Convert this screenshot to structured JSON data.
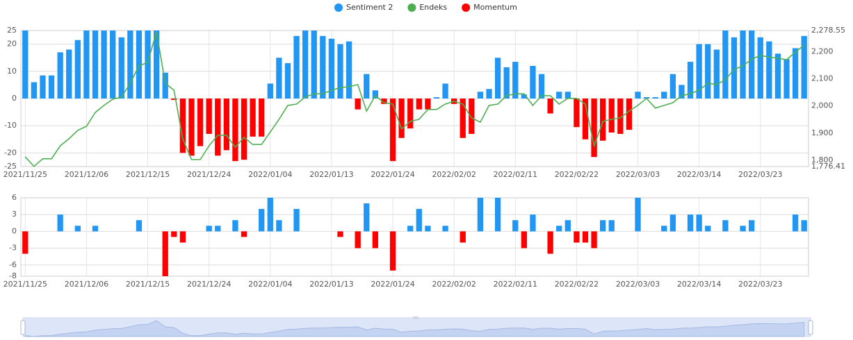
{
  "chart_data": [
    {
      "type": "bar_line",
      "categories": [
        "2021/11/25",
        null,
        null,
        null,
        null,
        null,
        null,
        "2021/12/06",
        null,
        null,
        null,
        null,
        null,
        null,
        "2021/12/15",
        null,
        null,
        null,
        null,
        null,
        null,
        "2021/12/24",
        null,
        null,
        null,
        null,
        null,
        null,
        "2022/01/04",
        null,
        null,
        null,
        null,
        null,
        null,
        "2022/01/13",
        null,
        null,
        null,
        null,
        null,
        null,
        "2022/01/24",
        null,
        null,
        null,
        null,
        null,
        null,
        "2022/02/02",
        null,
        null,
        null,
        null,
        null,
        null,
        "2022/02/11",
        null,
        null,
        null,
        null,
        null,
        null,
        "2022/02/22",
        null,
        null,
        null,
        null,
        null,
        null,
        "2022/03/03",
        null,
        null,
        null,
        null,
        null,
        null,
        "2022/03/14",
        null,
        null,
        null,
        null,
        null,
        null,
        "2022/03/23",
        null,
        null,
        null,
        null,
        null
      ],
      "series": [
        {
          "name": "Sentiment 2",
          "color": "#2196f3",
          "kind": "bar",
          "values": [
            25,
            6,
            8.5,
            8.5,
            17,
            18,
            21.5,
            25,
            25,
            25,
            25,
            22.5,
            25,
            25,
            25,
            25,
            9.5,
            null,
            null,
            null,
            null,
            null,
            null,
            null,
            null,
            null,
            null,
            null,
            5.5,
            15,
            13,
            23,
            25,
            25,
            23,
            22,
            20,
            21,
            null,
            9,
            3,
            null,
            null,
            null,
            null,
            null,
            null,
            0.5,
            5.5,
            null,
            null,
            null,
            2.5,
            3.5,
            15,
            11.5,
            13.5,
            1.5,
            12,
            9,
            null,
            2.5,
            2.5,
            null,
            null,
            null,
            null,
            null,
            null,
            null,
            2.5,
            0.5,
            0.5,
            2.5,
            9,
            5,
            13.5,
            20,
            20,
            18,
            25,
            22.5,
            25,
            25,
            22.5,
            21,
            16.5,
            14.5,
            18.5,
            23
          ]
        },
        {
          "name": "Endeks",
          "color": "#4caf50",
          "kind": "line",
          "axis": "y2",
          "values": [
            1812,
            1777,
            1805,
            1805,
            1853,
            1879,
            1910,
            1925,
            1976,
            2002,
            2025,
            2033,
            2084,
            2148,
            2161,
            2274,
            2084,
            2058,
            1879,
            1802,
            1802,
            1853,
            1892,
            1892,
            1848,
            1884,
            1858,
            1858,
            1904,
            1951,
            2002,
            2007,
            2033,
            2045,
            2045,
            2058,
            2068,
            2071,
            2079,
            1981,
            2038,
            2012,
            2007,
            1915,
            1943,
            1951,
            1987,
            1987,
            2007,
            2017,
            2007,
            1956,
            1940,
            2002,
            2007,
            2038,
            2045,
            2045,
            2002,
            2038,
            2038,
            2007,
            2028,
            2028,
            2007,
            1853,
            1943,
            1951,
            1956,
            1981,
            2002,
            2028,
            1992,
            2002,
            2012,
            2038,
            2045,
            2058,
            2084,
            2079,
            2097,
            2135,
            2148,
            2173,
            2186,
            2181,
            2176,
            2171,
            2199,
            2225
          ]
        },
        {
          "name": "Momentum",
          "color": "#ff0000",
          "kind": "bar",
          "values": [
            null,
            null,
            null,
            null,
            null,
            null,
            null,
            null,
            null,
            null,
            null,
            null,
            null,
            null,
            null,
            null,
            null,
            -0.5,
            -20,
            -21,
            -17.5,
            -13,
            -21,
            -19,
            -23,
            -22.5,
            -14,
            -14,
            null,
            null,
            null,
            null,
            null,
            null,
            null,
            null,
            null,
            null,
            -4,
            null,
            null,
            -2,
            -23,
            -14.5,
            -11,
            -4,
            -4,
            null,
            null,
            -2,
            -14.5,
            -13,
            null,
            null,
            null,
            null,
            null,
            null,
            null,
            null,
            -5.5,
            null,
            null,
            -10.5,
            -15,
            -21.5,
            -15.5,
            -12.5,
            -13,
            -11.5,
            null,
            null,
            null,
            null,
            null,
            null,
            null,
            null,
            null,
            null,
            null,
            null,
            null,
            null,
            null,
            null,
            null,
            null,
            null,
            null
          ]
        }
      ],
      "ylim": [
        -25,
        25
      ],
      "yticks": [
        25,
        20,
        10,
        0,
        -10,
        -20,
        -25
      ],
      "y2lim": [
        1776.41,
        2278.55
      ],
      "y2ticks": [
        {
          "value": 2278.55,
          "label": "2,278.55"
        },
        {
          "value": 2200,
          "label": "2,200"
        },
        {
          "value": 2100,
          "label": "2,100"
        },
        {
          "value": 2000,
          "label": "2,000"
        },
        {
          "value": 1900,
          "label": "1,900"
        },
        {
          "value": 1800,
          "label": "1,800"
        },
        {
          "value": 1776.41,
          "label": "1,776.41"
        }
      ],
      "grid": true,
      "legend": "top"
    },
    {
      "type": "signed_bar",
      "color": "#2196f3",
      "negative_color": "#ff0000",
      "values": [
        -4,
        0,
        0,
        0,
        3,
        0,
        1,
        0,
        1,
        0,
        0,
        0,
        0,
        2,
        0,
        0,
        -8,
        -1,
        -2,
        0,
        0,
        1,
        1,
        0,
        2,
        -1,
        0,
        4,
        6,
        2,
        0,
        4,
        0,
        0,
        0,
        0,
        -1,
        0,
        -3,
        5,
        -3,
        0,
        -7,
        0,
        1,
        4,
        1,
        0,
        1,
        0,
        -2,
        0,
        6,
        0,
        6,
        0,
        2,
        -3,
        3,
        0,
        -4,
        1,
        2,
        -2,
        -2,
        -3,
        2,
        2,
        0,
        0,
        6,
        0,
        0,
        1,
        3,
        0,
        3,
        3,
        1,
        0,
        2,
        0,
        1,
        2,
        0,
        0,
        0,
        0,
        3,
        2
      ],
      "ylim": [
        -8,
        6
      ],
      "yticks": [
        6,
        3,
        0,
        -3,
        -6,
        -8
      ],
      "grid": true
    }
  ]
}
